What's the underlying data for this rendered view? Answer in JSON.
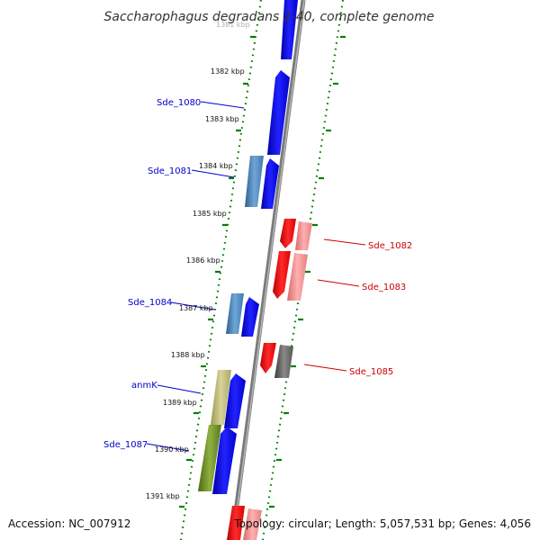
{
  "title": "Saccharophagus degradans 2-40, complete genome",
  "footer": {
    "accession": "Accession: NC_007912",
    "topology": "Topology: circular; Length: 5,057,531 bp; Genes: 4,056"
  },
  "ticks": [
    {
      "label": "1381 kbp"
    },
    {
      "label": "1382 kbp"
    },
    {
      "label": "1383 kbp"
    },
    {
      "label": "1384 kbp"
    },
    {
      "label": "1385 kbp"
    },
    {
      "label": "1386 kbp"
    },
    {
      "label": "1387 kbp"
    },
    {
      "label": "1388 kbp"
    },
    {
      "label": "1389 kbp"
    },
    {
      "label": "1390 kbp"
    },
    {
      "label": "1391 kbp"
    }
  ],
  "gene_labels": [
    {
      "name": "Sde_1080",
      "strand": "forward"
    },
    {
      "name": "Sde_1081",
      "strand": "forward"
    },
    {
      "name": "Sde_1082",
      "strand": "reverse"
    },
    {
      "name": "Sde_1083",
      "strand": "reverse"
    },
    {
      "name": "Sde_1084",
      "strand": "forward"
    },
    {
      "name": "Sde_1085",
      "strand": "reverse"
    },
    {
      "name": "anmK",
      "strand": "forward"
    },
    {
      "name": "Sde_1087",
      "strand": "forward"
    }
  ],
  "colors": {
    "forward_label": "#0000cc",
    "reverse_label": "#cc0000",
    "forward_cds": "#0000ff",
    "reverse_cds": "#ff0000",
    "scale_ring": "#008000",
    "backbone": "#888888"
  }
}
